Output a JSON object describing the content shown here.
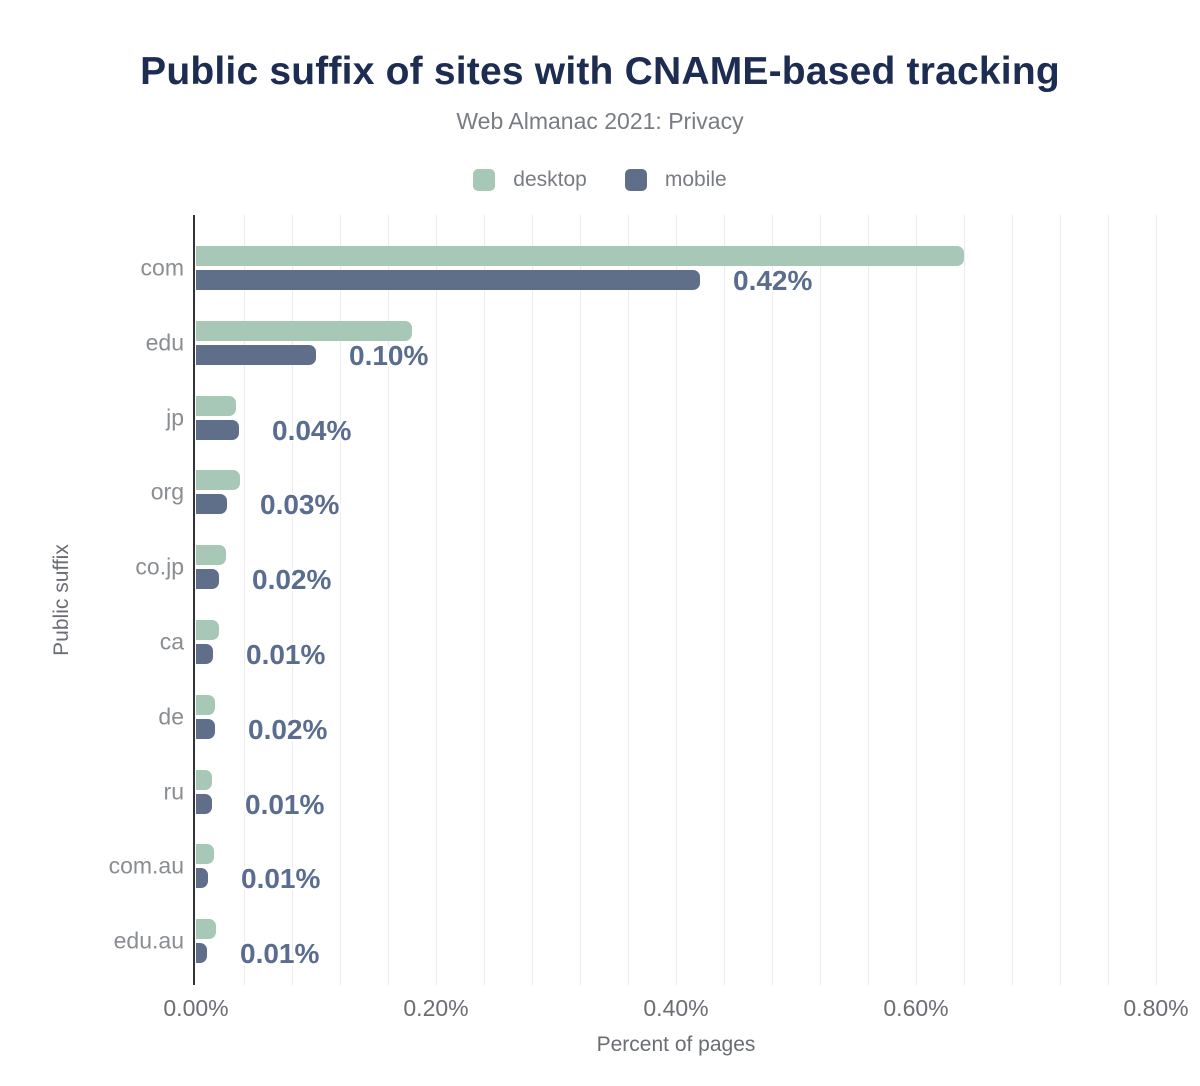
{
  "chart_data": {
    "type": "bar",
    "orientation": "horizontal",
    "title": "Public suffix of sites with CNAME-based tracking",
    "subtitle": "Web Almanac 2021: Privacy",
    "xlabel": "Percent of pages",
    "ylabel": "Public suffix",
    "xlim": [
      0,
      0.8
    ],
    "grid": "vertical",
    "grid_step": 0.04,
    "legend_position": "top",
    "categories": [
      "com",
      "edu",
      "jp",
      "org",
      "co.jp",
      "ca",
      "de",
      "ru",
      "com.au",
      "edu.au"
    ],
    "series": [
      {
        "name": "desktop",
        "color": "#a7c8b6",
        "values": [
          0.64,
          0.18,
          0.033,
          0.037,
          0.025,
          0.019,
          0.016,
          0.013,
          0.015,
          0.017
        ]
      },
      {
        "name": "mobile",
        "color": "#5f6f8a",
        "values": [
          0.42,
          0.1,
          0.036,
          0.026,
          0.019,
          0.014,
          0.016,
          0.013,
          0.01,
          0.009
        ]
      }
    ],
    "value_labels": {
      "labeled_series": "mobile",
      "labels": [
        "0.42%",
        "0.10%",
        "0.04%",
        "0.03%",
        "0.02%",
        "0.01%",
        "0.02%",
        "0.01%",
        "0.01%",
        "0.01%"
      ]
    },
    "x_ticks": [
      {
        "label": "0.00%",
        "value": 0.0
      },
      {
        "label": "0.20%",
        "value": 0.2
      },
      {
        "label": "0.40%",
        "value": 0.4
      },
      {
        "label": "0.60%",
        "value": 0.6
      },
      {
        "label": "0.80%",
        "value": 0.8
      }
    ]
  },
  "style": {
    "title_color": "#1d2c51",
    "muted_text_color": "#797c82",
    "tick_text_color": "#6a6d73",
    "category_text_color": "#8a8d91",
    "value_label_color": "#5b6d8f",
    "axis_line_color": "#303338",
    "gridline_color": "#ececec",
    "background": "#ffffff"
  }
}
